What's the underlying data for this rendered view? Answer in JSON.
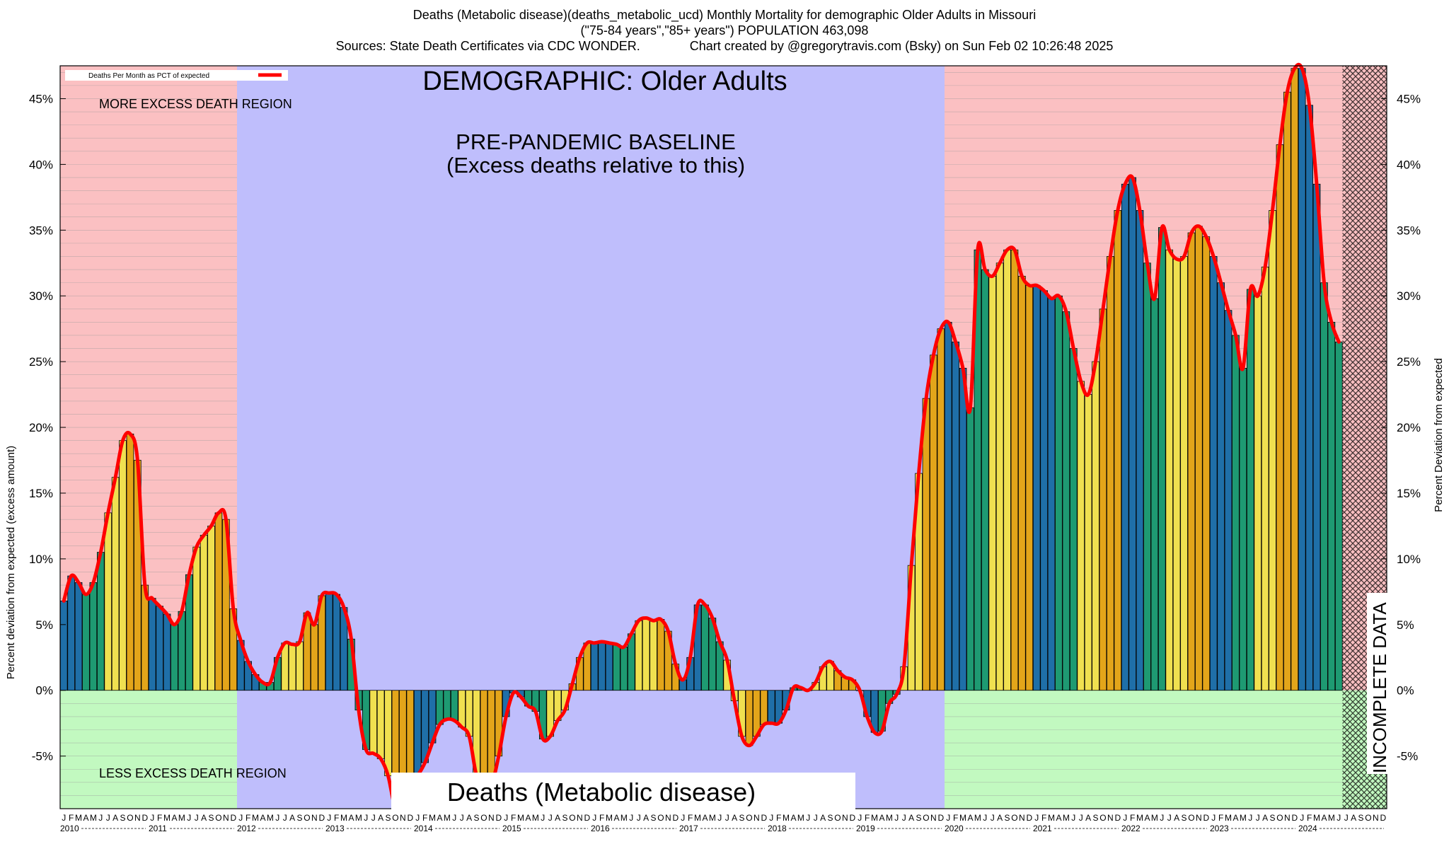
{
  "header": {
    "line1": "Deaths (Metabolic disease)(deaths_metabolic_ucd) Monthly Mortality for demographic Older Adults in Missouri",
    "line2": "(\"75-84 years\",\"85+ years\") POPULATION 463,098",
    "line3": "Sources: State Death Certificates via CDC WONDER.              Chart created by @gregorytravis.com (Bsky) on Sun Feb 02 10:26:48 2025"
  },
  "labels": {
    "demographic": "DEMOGRAPHIC: Older Adults",
    "baseline_line1": "PRE-PANDEMIC BASELINE",
    "baseline_line2": "(Excess deaths relative to this)",
    "more_region": "MORE EXCESS DEATH REGION",
    "less_region": "LESS EXCESS DEATH REGION",
    "cause": "Deaths (Metabolic disease)",
    "incomplete": "INCOMPLETE DATA",
    "legend": "Deaths Per Month as PCT of expected"
  },
  "colors": {
    "more_region": "#fbc0c2",
    "less_region": "#c2f9c0",
    "baseline": "#bfbefc",
    "line": "#ff0000",
    "bar_blue": "#1f6fa8",
    "bar_green": "#1e9a72",
    "bar_yellow": "#f0e050",
    "bar_orange": "#e3a51a"
  },
  "chart_data": {
    "type": "bar",
    "ylabel": "Percent deviation from expected (excess amount)",
    "ylabel_right": "Percent Deviation from expected",
    "ylim": [
      -9,
      47.5
    ],
    "yticks": [
      "-5%",
      "0%",
      "5%",
      "10%",
      "15%",
      "20%",
      "25%",
      "30%",
      "35%",
      "40%",
      "45%"
    ],
    "month_labels": [
      "J",
      "F",
      "M",
      "A",
      "M",
      "J",
      "J",
      "A",
      "S",
      "O",
      "N",
      "D"
    ],
    "years": [
      "2010",
      "2011",
      "2012",
      "2013",
      "2014",
      "2015",
      "2016",
      "2017",
      "2018",
      "2019",
      "2020",
      "2021",
      "2022",
      "2023",
      "2024"
    ],
    "baseline_period": [
      "2012-01",
      "2019-12"
    ],
    "incomplete_from": "2024-07",
    "series": [
      {
        "name": "Deaths Per Month as PCT of expected",
        "start": "2010-01",
        "values": [
          6.8,
          8.7,
          8.2,
          7.3,
          8.2,
          10.5,
          13.5,
          16.2,
          19.0,
          19.5,
          17.5,
          8.0,
          7.0,
          6.4,
          5.8,
          5.0,
          6.0,
          8.8,
          10.9,
          11.8,
          12.5,
          13.5,
          13.0,
          6.2,
          3.8,
          2.2,
          1.2,
          0.6,
          0.6,
          2.5,
          3.6,
          3.5,
          3.7,
          5.9,
          5.0,
          7.2,
          7.4,
          7.3,
          6.3,
          3.9,
          -1.5,
          -4.5,
          -4.8,
          -5.2,
          -6.5,
          -9.0,
          -8.5,
          -7.3,
          -6.5,
          -5.5,
          -4.0,
          -2.6,
          -2.2,
          -2.3,
          -2.8,
          -3.5,
          -6.5,
          -7.5,
          -7.3,
          -5.0,
          -2.0,
          -0.2,
          -0.5,
          -1.2,
          -1.6,
          -3.7,
          -3.5,
          -2.3,
          -1.5,
          0.5,
          2.5,
          3.6,
          3.6,
          3.7,
          3.6,
          3.5,
          3.3,
          4.3,
          5.3,
          5.5,
          5.3,
          5.4,
          4.5,
          2.0,
          0.8,
          2.5,
          6.5,
          6.5,
          5.5,
          3.7,
          2.3,
          -0.8,
          -3.5,
          -4.2,
          -3.5,
          -2.6,
          -2.5,
          -2.5,
          -1.5,
          0.2,
          0.2,
          0.0,
          0.6,
          1.8,
          2.2,
          1.5,
          1.0,
          0.8,
          0.0,
          -2.0,
          -3.2,
          -3.1,
          -1.0,
          -0.3,
          1.8,
          9.5,
          16.5,
          22.2,
          25.5,
          27.5,
          28.0,
          26.5,
          24.5,
          21.5,
          33.5,
          32.0,
          31.5,
          32.5,
          33.5,
          33.5,
          31.5,
          30.8,
          30.8,
          30.4,
          29.8,
          30.0,
          28.8,
          26.0,
          23.5,
          22.5,
          25.0,
          29.0,
          33.0,
          36.5,
          38.5,
          39.0,
          36.5,
          32.5,
          29.8,
          35.2,
          33.5,
          32.8,
          33.0,
          34.8,
          35.3,
          34.5,
          33.0,
          31.0,
          28.9,
          27.0,
          24.5,
          30.5,
          30.0,
          32.2,
          36.5,
          41.5,
          45.5,
          47.3,
          47.3,
          44.5,
          38.5,
          31.0,
          28.0,
          26.5
        ]
      }
    ]
  }
}
